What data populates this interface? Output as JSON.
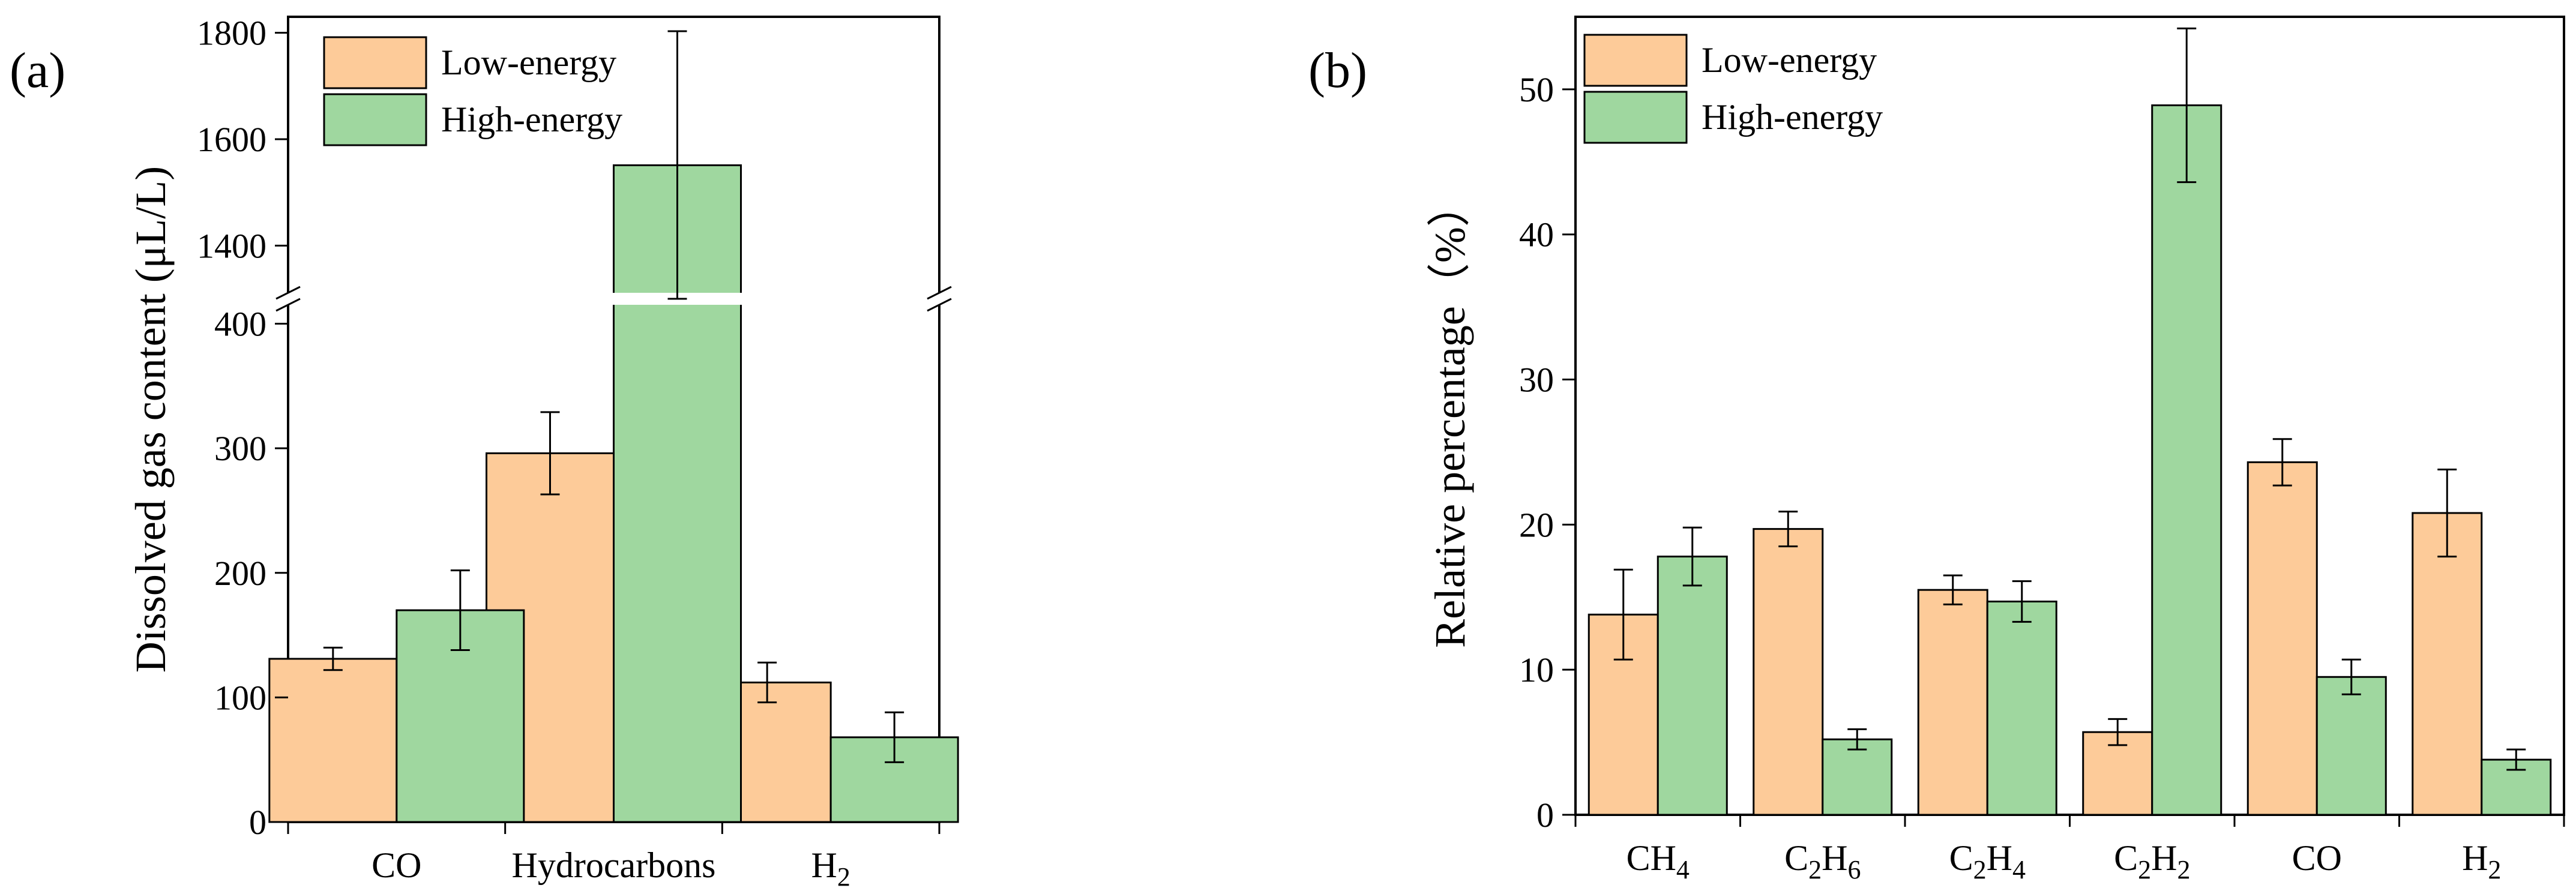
{
  "chart_data": [
    {
      "type": "bar",
      "panel_label": "(a)",
      "ylabel": "Dissolved gas content (μL/L)",
      "categories": [
        "CO",
        "Hydrocarbons",
        "H|2"
      ],
      "category_display": [
        "CO",
        "Hydrocarbons",
        "H₂"
      ],
      "axis_break": {
        "lower_range": [
          0,
          420
        ],
        "upper_range": [
          1300,
          1830
        ]
      },
      "lower_ticks": [
        0,
        100,
        200,
        300,
        400
      ],
      "upper_ticks": [
        1400,
        1600,
        1800
      ],
      "legend": {
        "placement": "top-left"
      },
      "series": [
        {
          "name": "Low-energy",
          "color": "#FDCB99",
          "values": [
            131,
            296,
            112
          ],
          "errors": [
            9,
            33,
            16
          ]
        },
        {
          "name": "High-energy",
          "color": "#9FD79F",
          "values": [
            170,
            1551,
            68
          ],
          "errors": [
            32,
            252,
            20
          ]
        }
      ]
    },
    {
      "type": "bar",
      "panel_label": "(b)",
      "ylabel": "Relative percentage（%）",
      "categories": [
        "CH|4",
        "C|2|H|6",
        "C|2|H|4",
        "C|2|H|2",
        "CO",
        "H|2"
      ],
      "category_display": [
        "CH₄",
        "C₂H₆",
        "C₂H₄",
        "C₂H₂",
        "CO",
        "H₂"
      ],
      "ylim": [
        0,
        55
      ],
      "yticks": [
        0,
        10,
        20,
        30,
        40,
        50
      ],
      "legend": {
        "placement": "top-left"
      },
      "series": [
        {
          "name": "Low-energy",
          "color": "#FDCB99",
          "values": [
            13.8,
            19.7,
            15.5,
            5.7,
            24.3,
            20.8
          ],
          "errors": [
            3.1,
            1.2,
            1.0,
            0.9,
            1.6,
            3.0
          ]
        },
        {
          "name": "High-energy",
          "color": "#9FD79F",
          "values": [
            17.8,
            5.2,
            14.7,
            48.9,
            9.5,
            3.8
          ],
          "errors": [
            2.0,
            0.7,
            1.4,
            5.3,
            1.2,
            0.7
          ]
        }
      ]
    }
  ]
}
